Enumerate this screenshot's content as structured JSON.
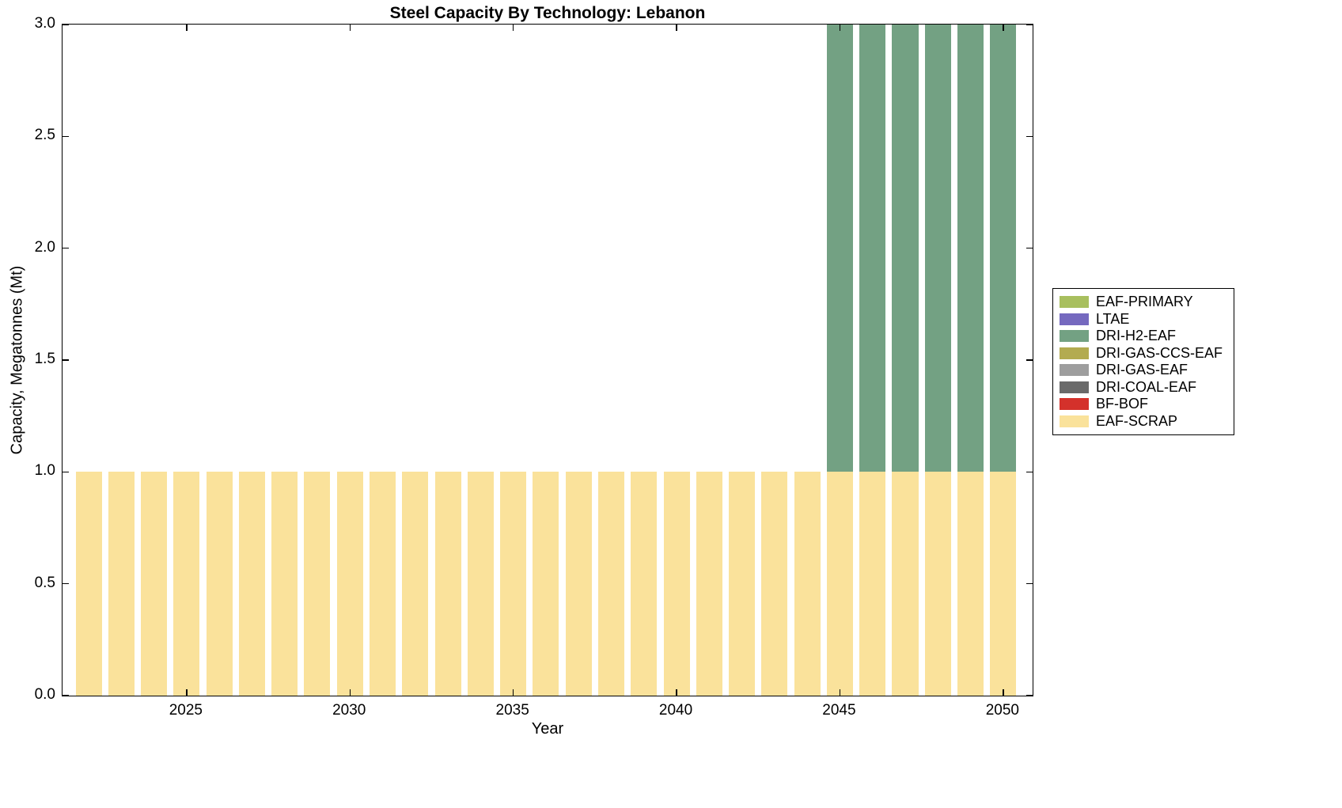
{
  "chart_data": {
    "type": "bar",
    "stacked": true,
    "title": "Steel Capacity By Technology: Lebanon",
    "xlabel": "Year",
    "ylabel": "Capacity, Megatonnes (Mt)",
    "xlim": [
      2021.2,
      2050.9
    ],
    "ylim": [
      0,
      3
    ],
    "xticks": [
      2025,
      2030,
      2035,
      2040,
      2045,
      2050
    ],
    "yticks": [
      0,
      0.5,
      1,
      1.5,
      2,
      2.5,
      3
    ],
    "ytick_labels": [
      "0.0",
      "0.5",
      "1.0",
      "1.5",
      "2.0",
      "2.5",
      "3.0"
    ],
    "bar_width_fraction": 0.8,
    "grid": false,
    "categories": [
      2022,
      2023,
      2024,
      2025,
      2026,
      2027,
      2028,
      2029,
      2030,
      2031,
      2032,
      2033,
      2034,
      2035,
      2036,
      2037,
      2038,
      2039,
      2040,
      2041,
      2042,
      2043,
      2044,
      2045,
      2046,
      2047,
      2048,
      2049,
      2050
    ],
    "series": [
      {
        "name": "EAF-SCRAP",
        "color": "#FAE29B",
        "values": [
          1,
          1,
          1,
          1,
          1,
          1,
          1,
          1,
          1,
          1,
          1,
          1,
          1,
          1,
          1,
          1,
          1,
          1,
          1,
          1,
          1,
          1,
          1,
          1,
          1,
          1,
          1,
          1,
          1
        ]
      },
      {
        "name": "DRI-H2-EAF",
        "color": "#73A183",
        "values": [
          0,
          0,
          0,
          0,
          0,
          0,
          0,
          0,
          0,
          0,
          0,
          0,
          0,
          0,
          0,
          0,
          0,
          0,
          0,
          0,
          0,
          0,
          0,
          2,
          2,
          2,
          2,
          2,
          2
        ]
      }
    ],
    "legend": {
      "position": "right-outside",
      "entries": [
        {
          "label": "EAF-PRIMARY",
          "color": "#A8BF5E"
        },
        {
          "label": "LTAE",
          "color": "#7569BF"
        },
        {
          "label": "DRI-H2-EAF",
          "color": "#73A183"
        },
        {
          "label": "DRI-GAS-CCS-EAF",
          "color": "#B3AB50"
        },
        {
          "label": "DRI-GAS-EAF",
          "color": "#9E9E9E"
        },
        {
          "label": "DRI-COAL-EAF",
          "color": "#6A6A6A"
        },
        {
          "label": "BF-BOF",
          "color": "#D4312B"
        },
        {
          "label": "EAF-SCRAP",
          "color": "#FAE29B"
        }
      ]
    }
  }
}
